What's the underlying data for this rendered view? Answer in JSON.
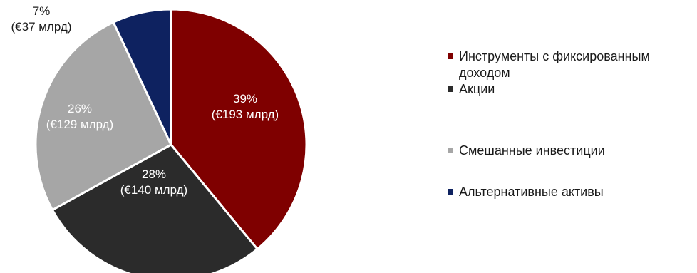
{
  "chart_data": {
    "type": "pie",
    "title": "",
    "slices": [
      {
        "name": "Инструменты с фиксированным доходом",
        "percent": 39,
        "label_pct": "39%",
        "label_amt": "(€193 млрд)",
        "color": "#7f0000",
        "label_color": "#ffffff"
      },
      {
        "name": "Акции",
        "percent": 28,
        "label_pct": "28%",
        "label_amt": "(€140 млрд)",
        "color": "#2b2b2b",
        "label_color": "#ffffff"
      },
      {
        "name": "Смешанные инвестиции",
        "percent": 26,
        "label_pct": "26%",
        "label_amt": "(€129 млрд)",
        "color": "#a6a6a6",
        "label_color": "#ffffff"
      },
      {
        "name": "Альтернативные активы",
        "percent": 7,
        "label_pct": "7%",
        "label_amt": "(€37 млрд)",
        "color": "#0e2260",
        "label_color": "#1a1a1a"
      }
    ],
    "start_angle_deg": 0,
    "direction": "clockwise",
    "legend_position": "right"
  }
}
